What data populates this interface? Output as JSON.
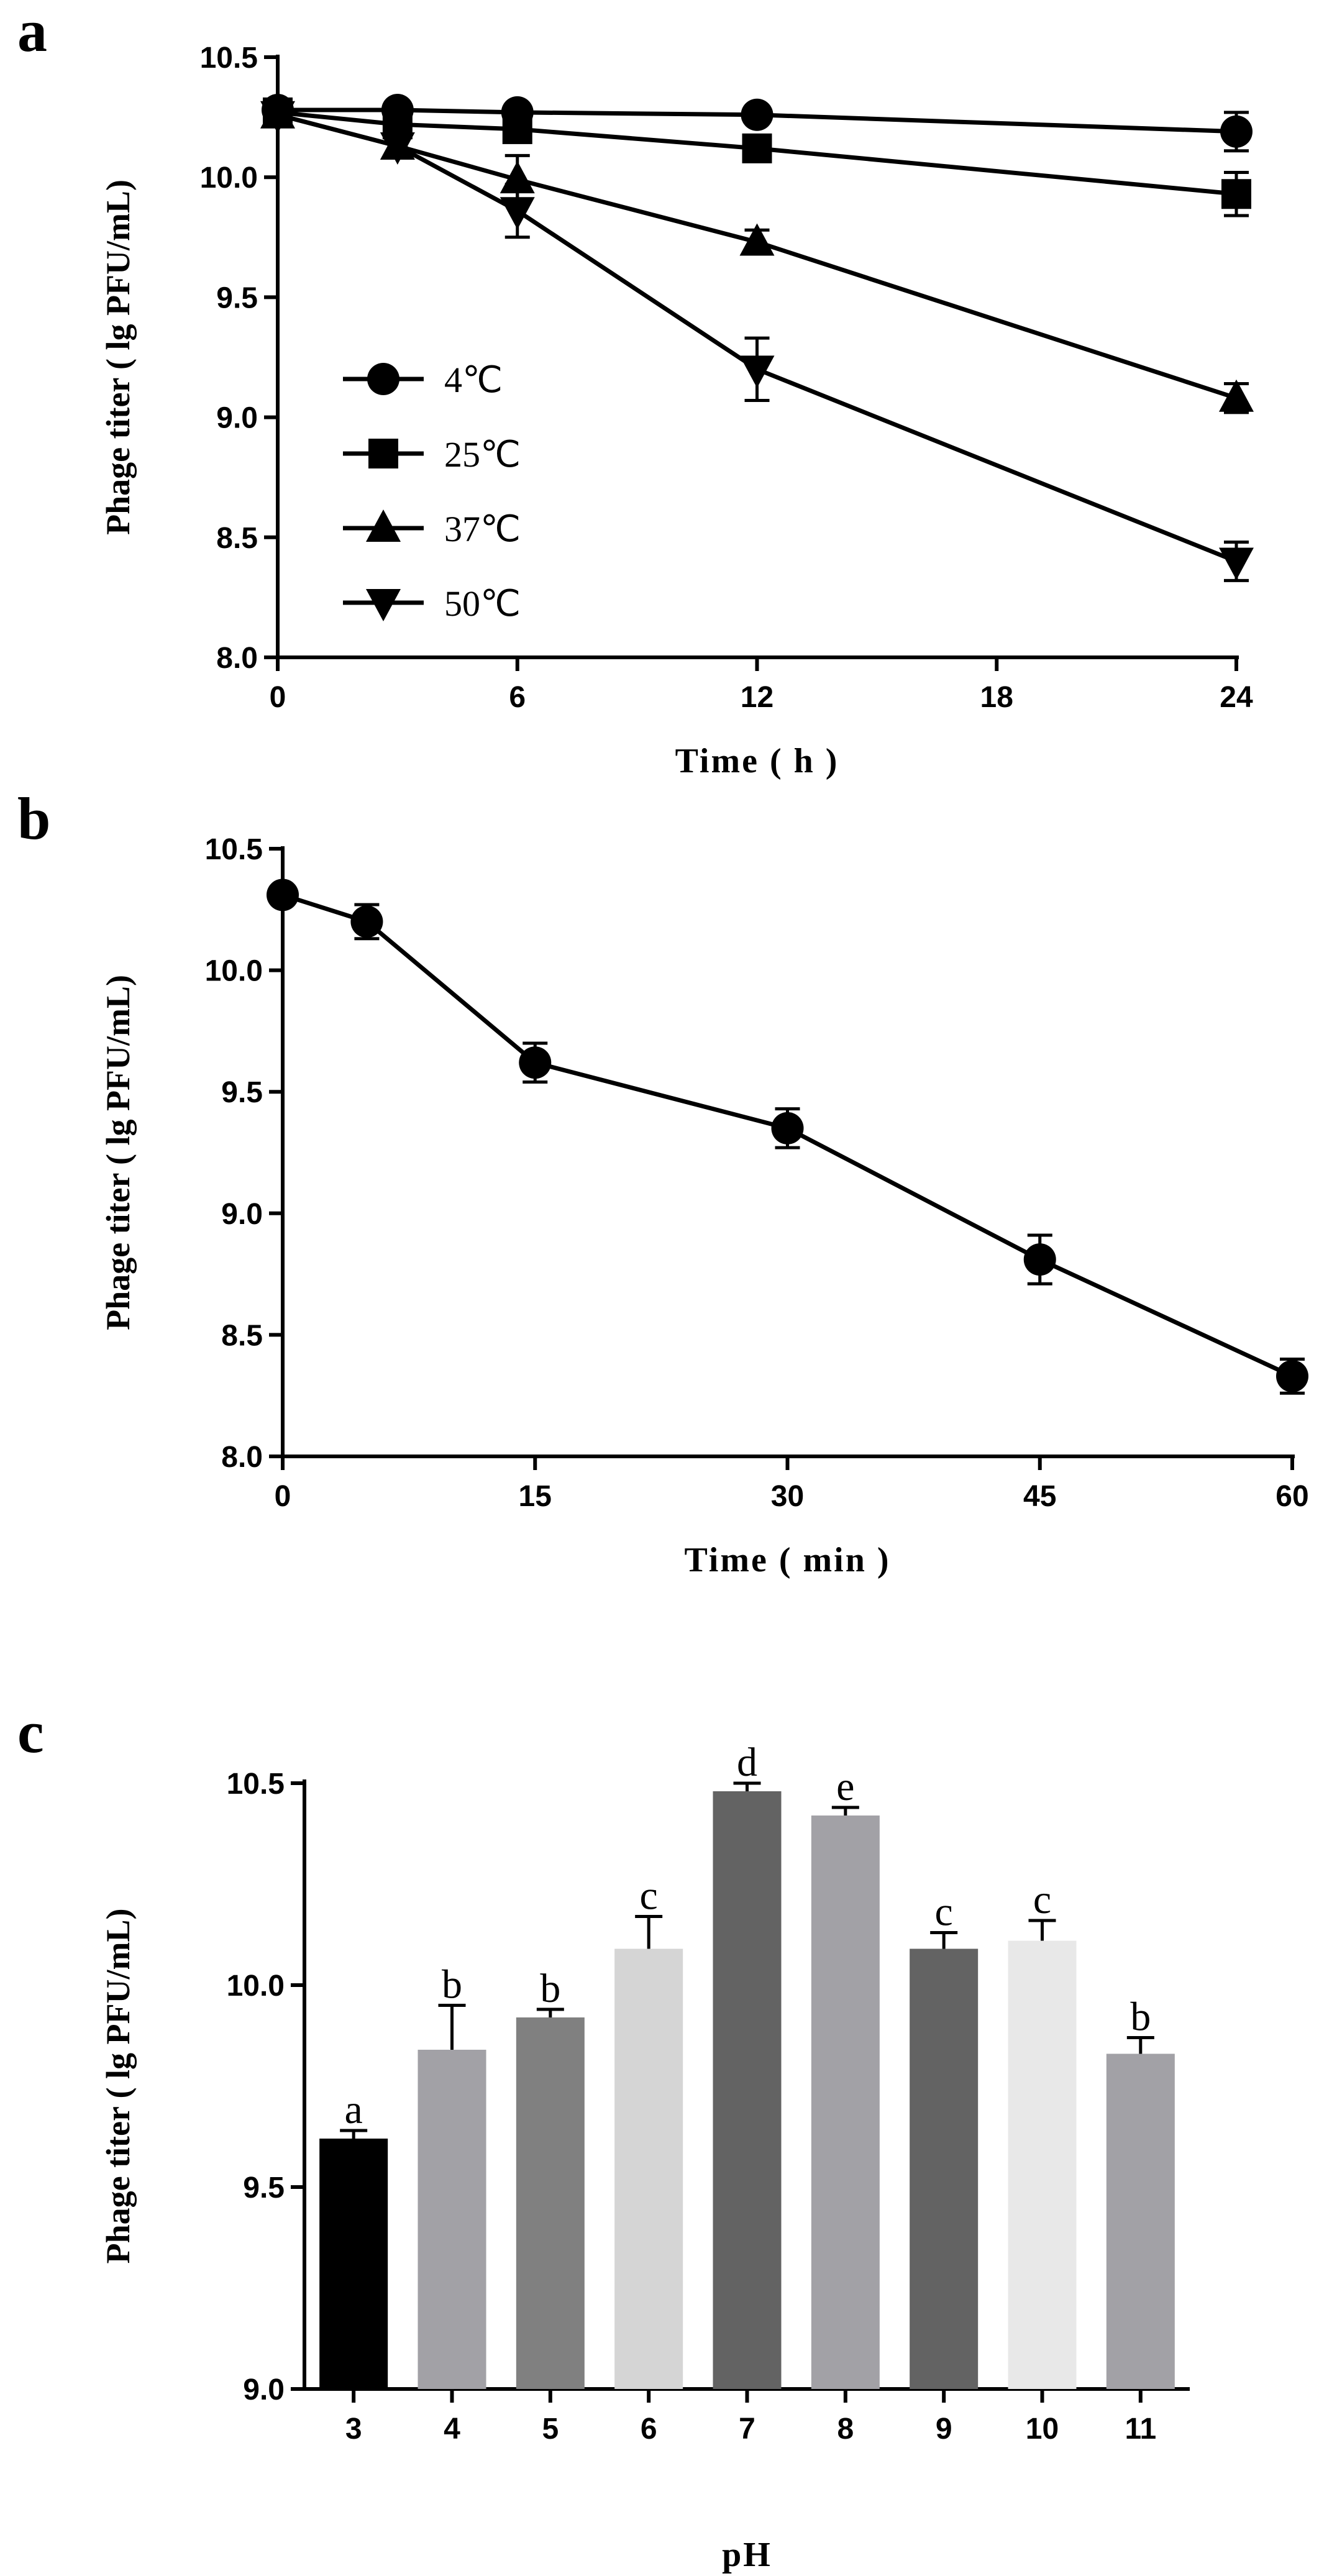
{
  "chart_data": [
    {
      "panel_label": "a",
      "type": "line",
      "x": [
        0,
        3,
        6,
        12,
        24
      ],
      "xticks": [
        0,
        6,
        12,
        18,
        24
      ],
      "xlim": [
        0,
        24
      ],
      "ylim": [
        8.0,
        10.5
      ],
      "yticks": [
        "8.0",
        "8.5",
        "9.0",
        "9.5",
        "10.0",
        "10.5"
      ],
      "xlabel": "Time ( h )",
      "ylabel": "Phage titer ( lg PFU/mL)",
      "legend_position": "center-left",
      "series": [
        {
          "name": "4℃",
          "marker": "circle",
          "values": [
            10.28,
            10.28,
            10.27,
            10.26,
            10.19
          ],
          "errors": [
            0.02,
            0.02,
            0.02,
            0.02,
            0.08
          ]
        },
        {
          "name": "25℃",
          "marker": "square",
          "values": [
            10.27,
            10.22,
            10.2,
            10.12,
            9.93
          ],
          "errors": [
            0.02,
            0.03,
            0.04,
            0.03,
            0.09
          ]
        },
        {
          "name": "37℃",
          "marker": "triangle-up",
          "values": [
            10.26,
            10.13,
            9.99,
            9.73,
            9.08
          ],
          "errors": [
            0.02,
            0.03,
            0.1,
            0.05,
            0.06
          ]
        },
        {
          "name": "50℃",
          "marker": "triangle-down",
          "values": [
            10.26,
            10.13,
            9.86,
            9.2,
            8.4
          ],
          "errors": [
            0.02,
            0.03,
            0.11,
            0.13,
            0.08
          ]
        }
      ]
    },
    {
      "panel_label": "b",
      "type": "line",
      "x": [
        0,
        5,
        15,
        30,
        45,
        60
      ],
      "xticks": [
        0,
        15,
        30,
        45,
        60
      ],
      "xlim": [
        0,
        60
      ],
      "ylim": [
        8.0,
        10.5
      ],
      "yticks": [
        "8.0",
        "8.5",
        "9.0",
        "9.5",
        "10.0",
        "10.5"
      ],
      "xlabel": "Time ( min )",
      "ylabel": "Phage titer ( lg PFU/mL)",
      "series": [
        {
          "name": "",
          "marker": "circle",
          "values": [
            10.31,
            10.2,
            9.62,
            9.35,
            8.81,
            8.33
          ],
          "errors": [
            0.0,
            0.07,
            0.08,
            0.08,
            0.1,
            0.07
          ]
        }
      ]
    },
    {
      "panel_label": "c",
      "type": "bar",
      "categories": [
        "3",
        "4",
        "5",
        "6",
        "7",
        "8",
        "9",
        "10",
        "11"
      ],
      "values": [
        9.62,
        9.84,
        9.92,
        10.09,
        10.48,
        10.42,
        10.09,
        10.11,
        9.83
      ],
      "errors": [
        0.02,
        0.11,
        0.02,
        0.08,
        0.02,
        0.02,
        0.04,
        0.05,
        0.04
      ],
      "significance": [
        "a",
        "b",
        "b",
        "c",
        "d",
        "e",
        "c",
        "c",
        "b"
      ],
      "colors": [
        "#000000",
        "#a2a1a6",
        "#808080",
        "#d5d5d5",
        "#636363",
        "#a2a1a6",
        "#636363",
        "#e8e8e8",
        "#a2a1a6"
      ],
      "ylim": [
        9.0,
        10.5
      ],
      "yticks": [
        "9.0",
        "9.5",
        "10.0",
        "10.5"
      ],
      "xlabel": "pH",
      "ylabel": "Phage titer ( lg PFU/mL)"
    }
  ]
}
